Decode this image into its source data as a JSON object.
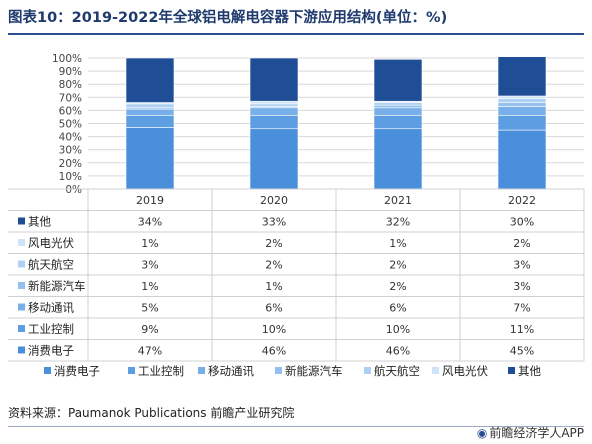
{
  "title": "图表10：2019-2022年全球铝电解电容器下游应用结构(单位：%)",
  "source": "资料来源：Paumanok Publications 前瞻产业研究院",
  "brand": "前瞻经济学人APP",
  "chart_data": {
    "type": "bar",
    "stacked": true,
    "categories": [
      "2019",
      "2020",
      "2021",
      "2022"
    ],
    "ylim": [
      0,
      100
    ],
    "yticks": [
      "0%",
      "10%",
      "20%",
      "30%",
      "40%",
      "50%",
      "60%",
      "70%",
      "80%",
      "90%",
      "100%"
    ],
    "grid": true,
    "legend_position": "bottom",
    "series": [
      {
        "name": "消费电子",
        "color": "#4a8fdc",
        "values": [
          47,
          46,
          46,
          45
        ],
        "labels": [
          "47%",
          "46%",
          "46%",
          "45%"
        ]
      },
      {
        "name": "工业控制",
        "color": "#5d9de2",
        "values": [
          9,
          10,
          10,
          11
        ],
        "labels": [
          "9%",
          "10%",
          "10%",
          "11%"
        ]
      },
      {
        "name": "移动通讯",
        "color": "#79afe8",
        "values": [
          5,
          6,
          6,
          7
        ],
        "labels": [
          "5%",
          "6%",
          "6%",
          "7%"
        ]
      },
      {
        "name": "新能源汽车",
        "color": "#93c0ee",
        "values": [
          1,
          1,
          2,
          3
        ],
        "labels": [
          "1%",
          "1%",
          "2%",
          "3%"
        ]
      },
      {
        "name": "航天航空",
        "color": "#aed0f3",
        "values": [
          3,
          2,
          2,
          3
        ],
        "labels": [
          "3%",
          "2%",
          "2%",
          "3%"
        ]
      },
      {
        "name": "风电光伏",
        "color": "#cfe3f8",
        "values": [
          1,
          2,
          1,
          2
        ],
        "labels": [
          "1%",
          "2%",
          "1%",
          "2%"
        ]
      },
      {
        "name": "其他",
        "color": "#1f4e96",
        "values": [
          34,
          33,
          32,
          30
        ],
        "labels": [
          "34%",
          "33%",
          "32%",
          "30%"
        ]
      }
    ]
  }
}
